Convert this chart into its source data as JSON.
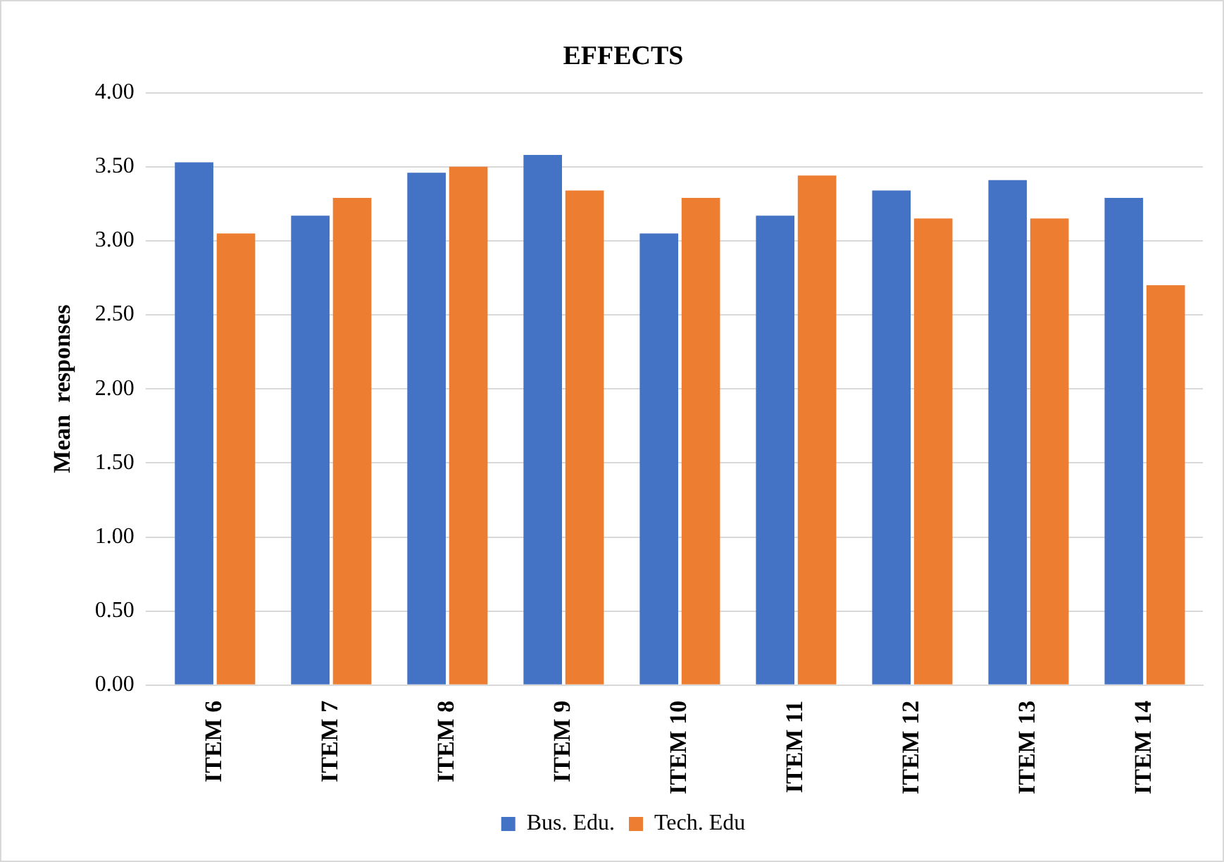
{
  "chart_data": {
    "type": "bar",
    "title": "EFFECTS",
    "ylabel": "Mean  responses",
    "categories": [
      "ITEM 6",
      "ITEM 7",
      "ITEM 8",
      "ITEM 9",
      "ITEM 10",
      "ITEM 11",
      "ITEM 12",
      "ITEM 13",
      "ITEM 14"
    ],
    "series": [
      {
        "name": "Bus. Edu.",
        "color": "#4472c4",
        "values": [
          3.53,
          3.17,
          3.46,
          3.58,
          3.05,
          3.17,
          3.34,
          3.41,
          3.29
        ]
      },
      {
        "name": "Tech. Edu",
        "color": "#ed7d31",
        "values": [
          3.05,
          3.29,
          3.5,
          3.34,
          3.29,
          3.44,
          3.15,
          3.15,
          2.7
        ]
      }
    ],
    "ylim": [
      0,
      4
    ],
    "yticks": [
      {
        "value": 0,
        "label": "0.00"
      },
      {
        "value": 0.5,
        "label": "0.50"
      },
      {
        "value": 1,
        "label": "1.00"
      },
      {
        "value": 1.5,
        "label": "1.50"
      },
      {
        "value": 2,
        "label": "2.00"
      },
      {
        "value": 2.5,
        "label": "2.50"
      },
      {
        "value": 3,
        "label": "3.00"
      },
      {
        "value": 3.5,
        "label": "3.50"
      },
      {
        "value": 4,
        "label": "4.00"
      }
    ],
    "grid": "y",
    "legend": "bottom"
  }
}
